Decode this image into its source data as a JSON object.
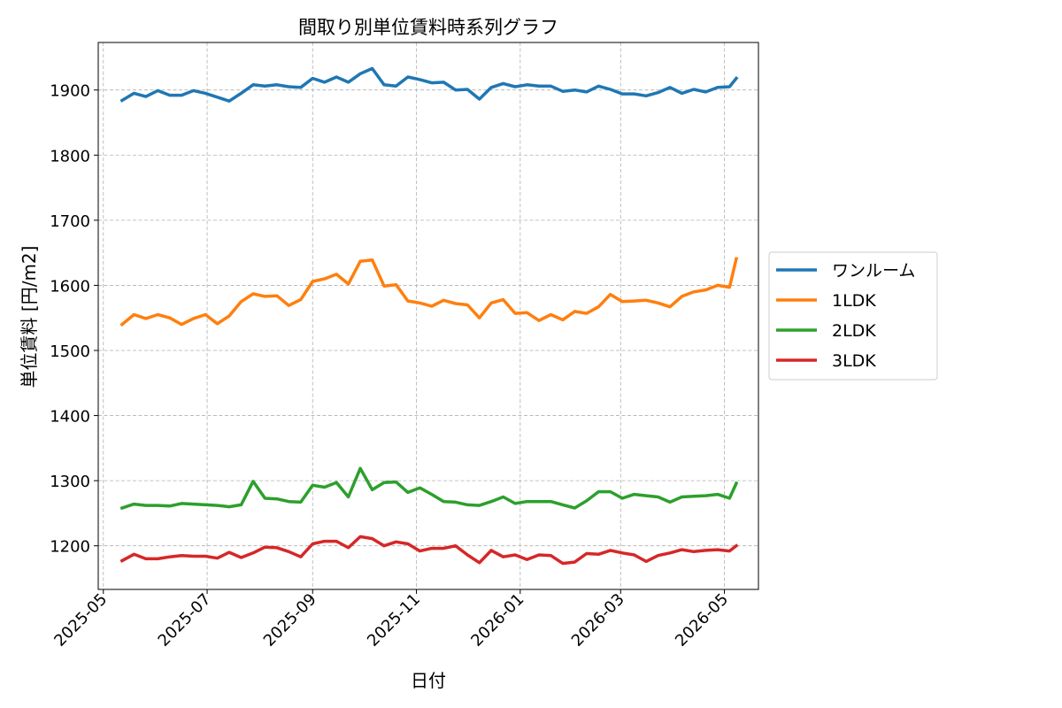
{
  "chart_data": {
    "type": "line",
    "title": "間取り別単位賃料時系列グラフ",
    "xlabel": "日付",
    "ylabel": "単位賃料 [円/m2]",
    "x_axis_kind": "date",
    "xlim": [
      "2025-04-28",
      "2026-05-21"
    ],
    "ylim": [
      1133,
      1973
    ],
    "x_ticks": [
      "2025-05-01",
      "2025-07-01",
      "2025-09-01",
      "2025-11-01",
      "2026-01-01",
      "2026-03-01",
      "2026-05-01"
    ],
    "x_tick_labels": [
      "2025-05",
      "2025-07",
      "2025-09",
      "2025-11",
      "2026-01",
      "2026-03",
      "2026-05"
    ],
    "y_ticks": [
      1200,
      1300,
      1400,
      1500,
      1600,
      1700,
      1800,
      1900
    ],
    "y_tick_labels": [
      "1200",
      "1300",
      "1400",
      "1500",
      "1600",
      "1700",
      "1800",
      "1900"
    ],
    "grid": true,
    "legend_position": "center-right, outside plot",
    "x": [
      "2025-05-12",
      "2025-05-19",
      "2025-05-26",
      "2025-06-02",
      "2025-06-09",
      "2025-06-16",
      "2025-06-23",
      "2025-06-30",
      "2025-07-07",
      "2025-07-14",
      "2025-07-21",
      "2025-07-28",
      "2025-08-04",
      "2025-08-11",
      "2025-08-18",
      "2025-08-25",
      "2025-09-01",
      "2025-09-08",
      "2025-09-15",
      "2025-09-22",
      "2025-09-29",
      "2025-10-06",
      "2025-10-13",
      "2025-10-20",
      "2025-10-27",
      "2025-11-03",
      "2025-11-10",
      "2025-11-17",
      "2025-11-24",
      "2025-12-01",
      "2025-12-08",
      "2025-12-15",
      "2025-12-22",
      "2025-12-29",
      "2026-01-05",
      "2026-01-12",
      "2026-01-19",
      "2026-01-26",
      "2026-02-02",
      "2026-02-09",
      "2026-02-16",
      "2026-02-23",
      "2026-03-02",
      "2026-03-09",
      "2026-03-16",
      "2026-03-23",
      "2026-03-30",
      "2026-04-06",
      "2026-04-13",
      "2026-04-20",
      "2026-04-27",
      "2026-05-04",
      "2026-05-08"
    ],
    "series": [
      {
        "name": "ワンルーム",
        "color": "#1f77b4",
        "values": [
          1884,
          1895,
          1890,
          1899,
          1892,
          1892,
          1899,
          1895,
          1889,
          1883,
          1895,
          1908,
          1906,
          1908,
          1905,
          1904,
          1918,
          1912,
          1920,
          1912,
          1925,
          1933,
          1908,
          1906,
          1920,
          1916,
          1911,
          1912,
          1900,
          1901,
          1886,
          1904,
          1910,
          1905,
          1908,
          1906,
          1906,
          1898,
          1900,
          1897,
          1906,
          1901,
          1894,
          1894,
          1891,
          1896,
          1904,
          1895,
          1901,
          1897,
          1904,
          1905,
          1918
        ]
      },
      {
        "name": "1LDK",
        "color": "#ff7f0e",
        "values": [
          1540,
          1555,
          1549,
          1555,
          1550,
          1540,
          1549,
          1555,
          1541,
          1553,
          1575,
          1587,
          1583,
          1584,
          1569,
          1578,
          1606,
          1610,
          1617,
          1602,
          1637,
          1639,
          1599,
          1601,
          1576,
          1573,
          1568,
          1577,
          1572,
          1570,
          1550,
          1573,
          1578,
          1557,
          1558,
          1546,
          1555,
          1547,
          1560,
          1557,
          1567,
          1586,
          1575,
          1576,
          1577,
          1573,
          1567,
          1583,
          1590,
          1593,
          1600,
          1597,
          1641
        ]
      },
      {
        "name": "2LDK",
        "color": "#2ca02c",
        "values": [
          1258,
          1264,
          1262,
          1262,
          1261,
          1265,
          1264,
          1263,
          1262,
          1260,
          1263,
          1299,
          1273,
          1272,
          1268,
          1267,
          1293,
          1290,
          1297,
          1275,
          1319,
          1286,
          1297,
          1298,
          1282,
          1289,
          1279,
          1268,
          1267,
          1263,
          1262,
          1268,
          1275,
          1265,
          1268,
          1268,
          1268,
          1263,
          1258,
          1269,
          1283,
          1283,
          1273,
          1279,
          1277,
          1275,
          1267,
          1275,
          1276,
          1277,
          1279,
          1273,
          1296
        ]
      },
      {
        "name": "3LDK",
        "color": "#d62728",
        "values": [
          1177,
          1187,
          1180,
          1180,
          1183,
          1185,
          1184,
          1184,
          1181,
          1190,
          1182,
          1189,
          1198,
          1197,
          1191,
          1183,
          1203,
          1207,
          1207,
          1197,
          1214,
          1211,
          1200,
          1206,
          1203,
          1192,
          1196,
          1196,
          1200,
          1186,
          1174,
          1193,
          1183,
          1186,
          1179,
          1186,
          1185,
          1173,
          1175,
          1188,
          1187,
          1193,
          1189,
          1186,
          1176,
          1185,
          1189,
          1194,
          1191,
          1193,
          1194,
          1192,
          1200
        ]
      }
    ]
  }
}
